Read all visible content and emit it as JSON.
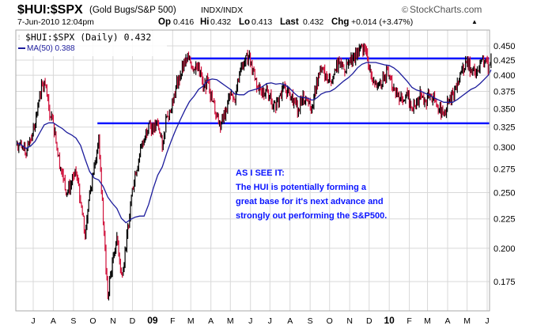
{
  "header": {
    "symbol": "$HUI:$SPX",
    "description": "(Gold Bugs/S&P 500)",
    "exchange": "INDX/INDX",
    "brand": "StockCharts.com",
    "brand_symbol": "©",
    "datetime": "7-Jun-2010 12:04pm",
    "op_label": "Op",
    "op": "0.416",
    "hi_label": "Hi",
    "hi": "0.432",
    "lo_label": "Lo",
    "lo": "0.413",
    "last_label": "Last",
    "last": "0.432",
    "chg_label": "Chg",
    "chg": "+0.014 (+3.47%)",
    "chg_arrow": "▲"
  },
  "legend": {
    "price": "$HUI:$SPX (Daily) 0.432",
    "ma": "MA(50) 0.388"
  },
  "annotation": {
    "lines": [
      "AS I SEE IT:",
      "The HUI is potentially forming a",
      "great base for it's next advance and",
      "strongly out performing the S&P500."
    ]
  },
  "colors": {
    "up": "#000000",
    "down": "#d0103a",
    "ma": "#1c1c9c",
    "trendline": "#0a14ff",
    "annotation": "#0a14ff",
    "grid": "#d8d8d8"
  },
  "chart_data": {
    "type": "line",
    "scale": "log",
    "ylim": [
      0.155,
      0.465
    ],
    "yticks": [
      "0.450",
      "0.425",
      "0.400",
      "0.375",
      "0.350",
      "0.325",
      "0.300",
      "0.275",
      "0.250",
      "0.225",
      "0.200",
      "0.175"
    ],
    "xticks": [
      {
        "date": "2008-07-01",
        "label": "J"
      },
      {
        "date": "2008-08-01",
        "label": "A"
      },
      {
        "date": "2008-09-01",
        "label": "S"
      },
      {
        "date": "2008-10-01",
        "label": "O"
      },
      {
        "date": "2008-11-01",
        "label": "N"
      },
      {
        "date": "2008-12-01",
        "label": "D"
      },
      {
        "date": "2009-01-01",
        "label": "09"
      },
      {
        "date": "2009-02-01",
        "label": "F"
      },
      {
        "date": "2009-03-01",
        "label": "M"
      },
      {
        "date": "2009-04-01",
        "label": "A"
      },
      {
        "date": "2009-05-01",
        "label": "M"
      },
      {
        "date": "2009-06-01",
        "label": "J"
      },
      {
        "date": "2009-07-01",
        "label": "J"
      },
      {
        "date": "2009-08-01",
        "label": "A"
      },
      {
        "date": "2009-09-01",
        "label": "S"
      },
      {
        "date": "2009-10-01",
        "label": "O"
      },
      {
        "date": "2009-11-01",
        "label": "N"
      },
      {
        "date": "2009-12-01",
        "label": "D"
      },
      {
        "date": "2010-01-01",
        "label": "10"
      },
      {
        "date": "2010-02-01",
        "label": "F"
      },
      {
        "date": "2010-03-01",
        "label": "M"
      },
      {
        "date": "2010-04-01",
        "label": "A"
      },
      {
        "date": "2010-05-01",
        "label": "M"
      },
      {
        "date": "2010-06-01",
        "label": "J"
      }
    ],
    "grid": true,
    "series": [
      {
        "name": "$HUI:$SPX (Daily)",
        "kind": "price",
        "dates": [
          "2008-06-06",
          "2008-06-13",
          "2008-06-20",
          "2008-06-27",
          "2008-07-04",
          "2008-07-11",
          "2008-07-18",
          "2008-07-25",
          "2008-08-01",
          "2008-08-08",
          "2008-08-15",
          "2008-08-22",
          "2008-08-29",
          "2008-09-05",
          "2008-09-12",
          "2008-09-19",
          "2008-09-26",
          "2008-10-03",
          "2008-10-10",
          "2008-10-17",
          "2008-10-24",
          "2008-10-31",
          "2008-11-07",
          "2008-11-14",
          "2008-11-21",
          "2008-11-28",
          "2008-12-05",
          "2008-12-12",
          "2008-12-19",
          "2008-12-26",
          "2009-01-02",
          "2009-01-09",
          "2009-01-16",
          "2009-01-23",
          "2009-01-30",
          "2009-02-06",
          "2009-02-13",
          "2009-02-20",
          "2009-02-27",
          "2009-03-06",
          "2009-03-13",
          "2009-03-20",
          "2009-03-27",
          "2009-04-03",
          "2009-04-10",
          "2009-04-17",
          "2009-04-24",
          "2009-05-01",
          "2009-05-08",
          "2009-05-15",
          "2009-05-22",
          "2009-05-29",
          "2009-06-05",
          "2009-06-12",
          "2009-06-19",
          "2009-06-26",
          "2009-07-03",
          "2009-07-10",
          "2009-07-17",
          "2009-07-24",
          "2009-07-31",
          "2009-08-07",
          "2009-08-14",
          "2009-08-21",
          "2009-08-28",
          "2009-09-04",
          "2009-09-11",
          "2009-09-18",
          "2009-09-25",
          "2009-10-02",
          "2009-10-09",
          "2009-10-16",
          "2009-10-23",
          "2009-10-30",
          "2009-11-06",
          "2009-11-13",
          "2009-11-20",
          "2009-11-27",
          "2009-12-04",
          "2009-12-11",
          "2009-12-18",
          "2009-12-25",
          "2010-01-01",
          "2010-01-08",
          "2010-01-15",
          "2010-01-22",
          "2010-01-29",
          "2010-02-05",
          "2010-02-12",
          "2010-02-19",
          "2010-02-26",
          "2010-03-05",
          "2010-03-12",
          "2010-03-19",
          "2010-03-26",
          "2010-04-02",
          "2010-04-09",
          "2010-04-16",
          "2010-04-23",
          "2010-04-30",
          "2010-05-07",
          "2010-05-14",
          "2010-05-21",
          "2010-05-28",
          "2010-06-04",
          "2010-06-07"
        ],
        "values": [
          0.305,
          0.3,
          0.29,
          0.31,
          0.33,
          0.37,
          0.39,
          0.35,
          0.33,
          0.29,
          0.27,
          0.25,
          0.26,
          0.27,
          0.24,
          0.21,
          0.25,
          0.28,
          0.31,
          0.22,
          0.165,
          0.19,
          0.21,
          0.18,
          0.2,
          0.24,
          0.27,
          0.29,
          0.31,
          0.33,
          0.32,
          0.33,
          0.3,
          0.34,
          0.35,
          0.38,
          0.4,
          0.42,
          0.43,
          0.41,
          0.42,
          0.38,
          0.39,
          0.36,
          0.34,
          0.33,
          0.35,
          0.37,
          0.36,
          0.4,
          0.42,
          0.43,
          0.41,
          0.38,
          0.37,
          0.38,
          0.36,
          0.35,
          0.37,
          0.38,
          0.37,
          0.36,
          0.35,
          0.37,
          0.36,
          0.35,
          0.39,
          0.41,
          0.4,
          0.39,
          0.41,
          0.42,
          0.41,
          0.42,
          0.43,
          0.44,
          0.45,
          0.44,
          0.4,
          0.39,
          0.39,
          0.4,
          0.4,
          0.38,
          0.37,
          0.36,
          0.37,
          0.35,
          0.36,
          0.37,
          0.36,
          0.37,
          0.36,
          0.35,
          0.34,
          0.36,
          0.37,
          0.39,
          0.41,
          0.42,
          0.41,
          0.4,
          0.42,
          0.42,
          0.416,
          0.432
        ]
      },
      {
        "name": "MA(50)",
        "kind": "moving_average",
        "period_days": 50
      }
    ],
    "trendlines": [
      {
        "from": "2009-02-20",
        "to": "2010-06-07",
        "value": 0.428
      },
      {
        "from": "2008-10-08",
        "to": "2010-06-07",
        "value": 0.33
      }
    ]
  }
}
